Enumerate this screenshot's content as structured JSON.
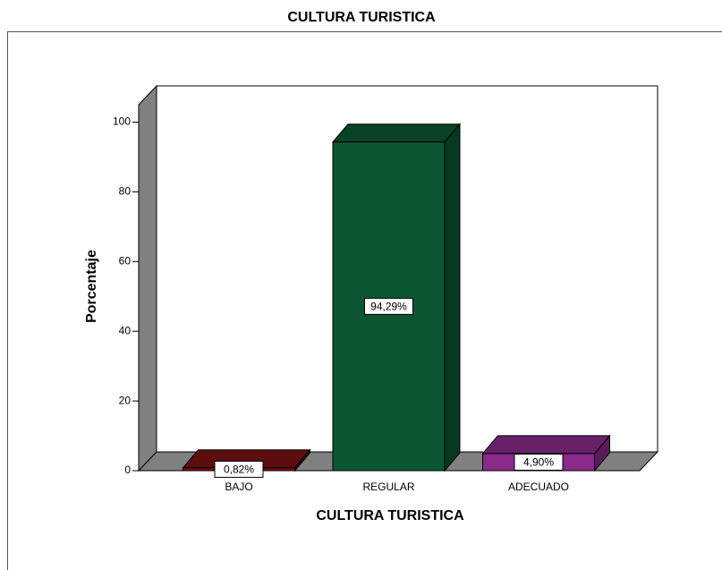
{
  "chart_data": {
    "type": "bar3d",
    "title": "CULTURA TURISTICA",
    "x_label": "CULTURA TURISTICA",
    "y_label": "Porcentaje",
    "categories": [
      "BAJO",
      "REGULAR",
      "ADECUADO"
    ],
    "values": [
      0.82,
      94.29,
      4.9
    ],
    "value_labels": [
      "0,82%",
      "94,29%",
      "4,90%"
    ],
    "colors": [
      "#7a1212",
      "#0b5630",
      "#8a2a8a"
    ],
    "ylim": [
      0,
      105
    ],
    "yticks": [
      0,
      20,
      40,
      60,
      80,
      100
    ]
  }
}
